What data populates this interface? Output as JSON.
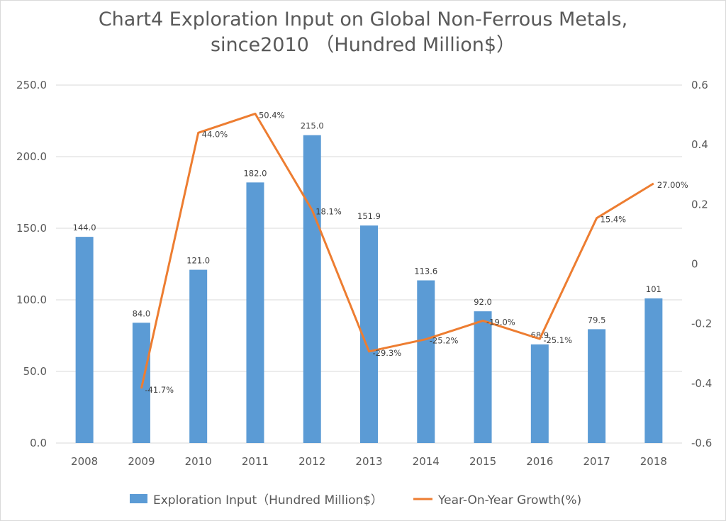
{
  "chart_data": {
    "type": "bar+line",
    "title_line1": "Chart4 Exploration Input on Global Non-Ferrous Metals,",
    "title_line2": "since2010 （Hundred Million$）",
    "categories": [
      "2008",
      "2009",
      "2010",
      "2011",
      "2012",
      "2013",
      "2014",
      "2015",
      "2016",
      "2017",
      "2018"
    ],
    "series": [
      {
        "name": "Exploration Input（Hundred Million$）",
        "type": "bar",
        "axis": "left",
        "color": "#5b9bd5",
        "values": [
          144.0,
          84.0,
          121.0,
          182.0,
          215.0,
          151.9,
          113.6,
          92.0,
          68.9,
          79.5,
          101
        ],
        "labels": [
          "144.0",
          "84.0",
          "121.0",
          "182.0",
          "215.0",
          "151.9",
          "113.6",
          "92.0",
          "68.9",
          "79.5",
          "101"
        ]
      },
      {
        "name": "Year-On-Year Growth(%)",
        "type": "line",
        "axis": "right",
        "color": "#ed7d31",
        "values": [
          null,
          -0.417,
          0.44,
          0.504,
          0.181,
          -0.293,
          -0.252,
          -0.19,
          -0.251,
          0.154,
          0.27
        ],
        "labels": [
          "",
          "-41.7%",
          "44.0%",
          "50.4%",
          "18.1%",
          "-29.3%",
          "-25.2%",
          "-19.0%",
          "-25.1%",
          "15.4%",
          "27.00%"
        ]
      }
    ],
    "y_left": {
      "range": [
        0,
        250
      ],
      "ticks": [
        "0.0",
        "50.0",
        "100.0",
        "150.0",
        "200.0",
        "250.0"
      ]
    },
    "y_right": {
      "range": [
        -0.6,
        0.6
      ],
      "ticks": [
        "-0.6",
        "-0.4",
        "-0.2",
        "0",
        "0.2",
        "0.4",
        "0.6"
      ]
    },
    "grid": true,
    "legend": "bottom"
  }
}
